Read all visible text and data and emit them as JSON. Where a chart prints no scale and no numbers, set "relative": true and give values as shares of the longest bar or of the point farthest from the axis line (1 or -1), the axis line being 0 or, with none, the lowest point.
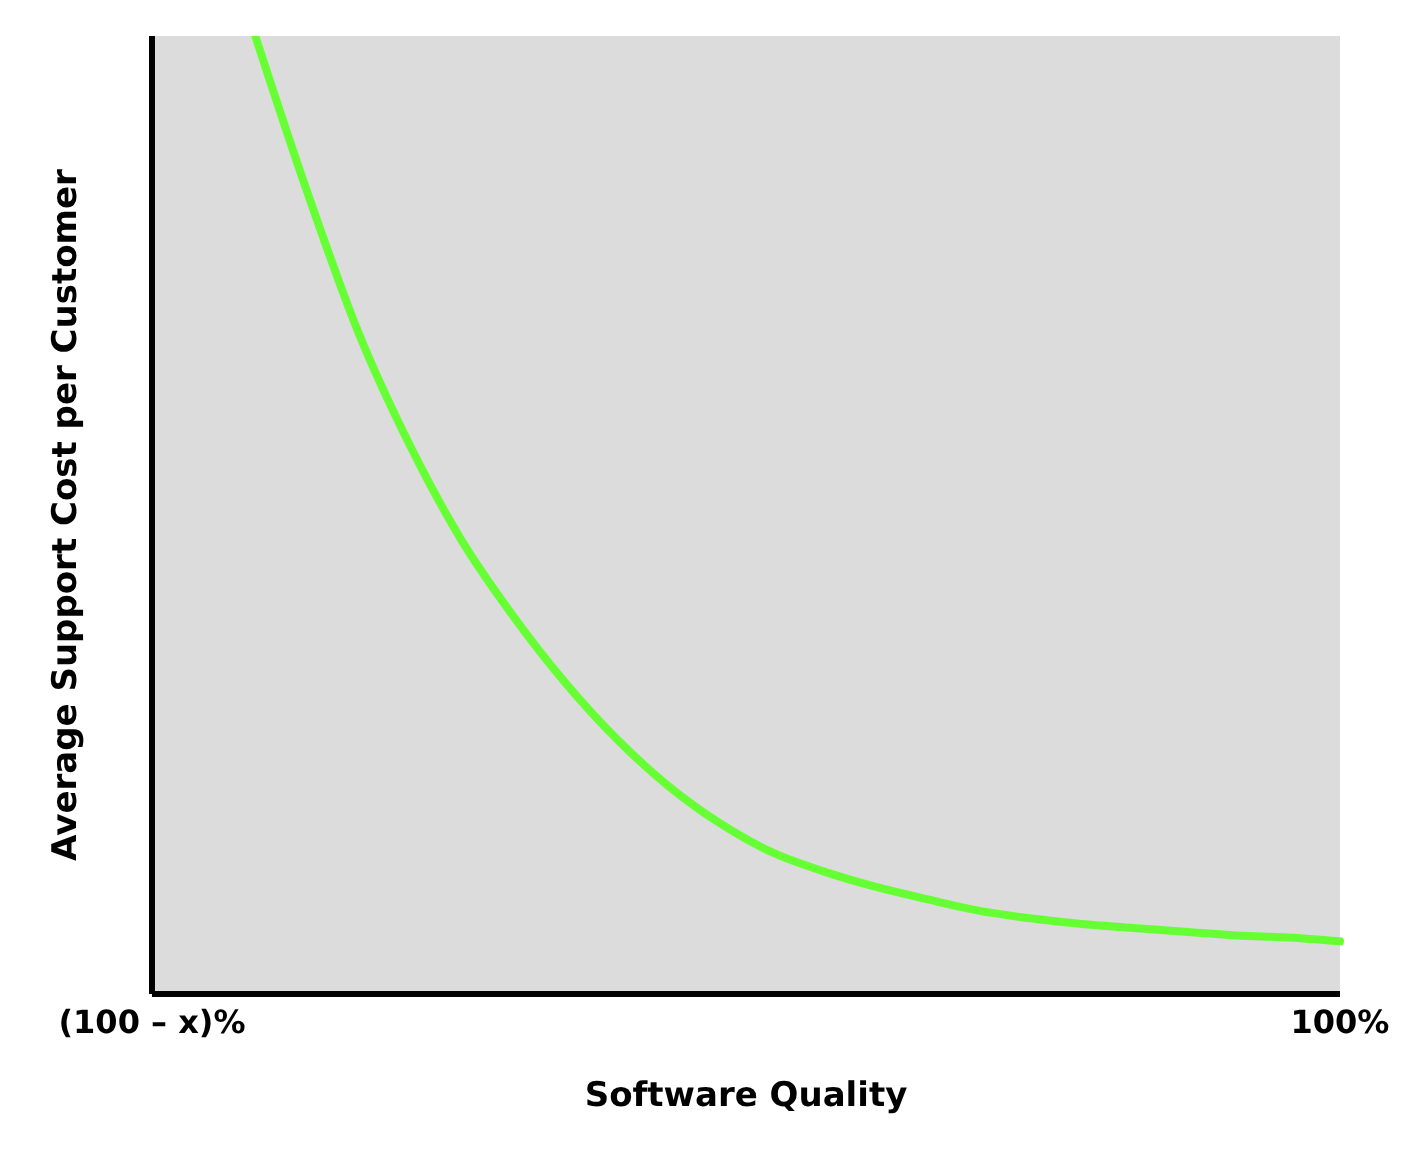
{
  "chart_data": {
    "type": "line",
    "relative": true,
    "xlabel": "Software Quality",
    "ylabel": "Average Support Cost per Customer",
    "categories": [
      "(100 – x)%",
      null,
      null,
      null,
      null,
      null,
      null,
      null,
      null,
      null,
      null,
      null,
      null,
      null,
      null,
      null,
      null,
      null,
      null,
      null,
      null,
      null,
      null,
      "100%"
    ],
    "series": [
      {
        "color": "#66ff33",
        "values": [
          null,
          null,
          1.0,
          0.838,
          0.69,
          0.572,
          0.473,
          0.394,
          0.325,
          0.266,
          0.217,
          0.178,
          0.148,
          0.128,
          0.112,
          0.099,
          0.087,
          0.079,
          0.073,
          0.069,
          0.065,
          0.061,
          0.059,
          0.055
        ]
      }
    ],
    "grid": false,
    "marker": "none",
    "line_style": "solid"
  }
}
